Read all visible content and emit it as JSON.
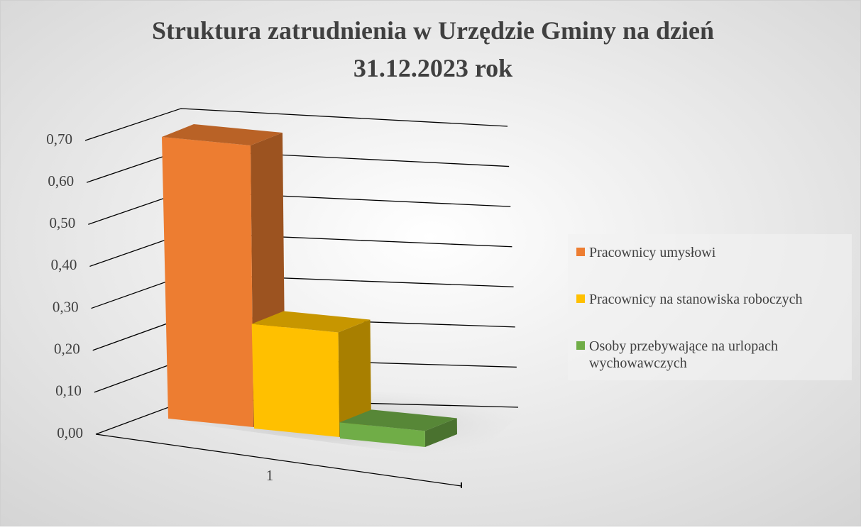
{
  "chart_data": {
    "type": "bar3d",
    "title": "Struktura zatrudnienia w Urzędzie Gminy na dzień 31.12.2023 rok",
    "categories": [
      "1"
    ],
    "series": [
      {
        "name": "Pracownicy umysłowi",
        "color": "#ed7d31",
        "values": [
          0.7
        ]
      },
      {
        "name": "Pracownicy na stanowiska roboczych",
        "color": "#ffc000",
        "values": [
          0.26
        ]
      },
      {
        "name": "Osoby przebywające na urlopach wychowawczych",
        "color": "#70ad47",
        "values": [
          0.04
        ]
      }
    ],
    "ylim": [
      0,
      0.7
    ],
    "yticks": [
      {
        "value": 0,
        "label": "0,00"
      },
      {
        "value": 0.1,
        "label": "0,10"
      },
      {
        "value": 0.2,
        "label": "0,20"
      },
      {
        "value": 0.3,
        "label": "0,30"
      },
      {
        "value": 0.4,
        "label": "0,40"
      },
      {
        "value": 0.5,
        "label": "0,50"
      },
      {
        "value": 0.6,
        "label": "0,60"
      },
      {
        "value": 0.7,
        "label": "0,70"
      }
    ],
    "grid": true,
    "legend": "right"
  }
}
